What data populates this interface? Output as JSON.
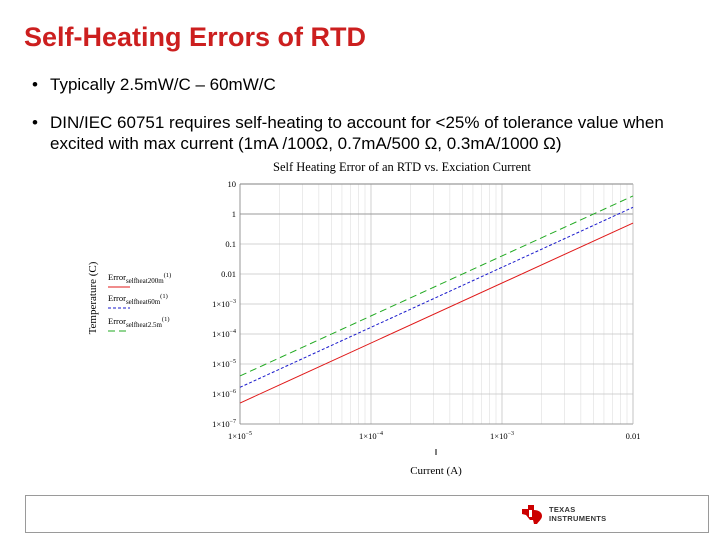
{
  "slide": {
    "title": "Self-Heating Errors of RTD",
    "bullets": [
      "Typically 2.5mW/C – 60mW/C",
      "DIN/IEC 60751 requires self-heating to account for <25% of tolerance value when excited with max current (1mA /100Ω, 0.7mA/500 Ω, 0.3mA/1000 Ω)"
    ],
    "bullet_symbol": "•"
  },
  "logo": {
    "line1": "TEXAS",
    "line2": "INSTRUMENTS",
    "color": "#cc0000"
  },
  "chart_data": {
    "type": "line",
    "title": "Self Heating Error of an RTD vs. Exciation Current",
    "xlabel": "Current (A)",
    "ylabel": "Temperature (C)",
    "x_scale": "log",
    "y_scale": "log",
    "xlim": [
      1e-05,
      0.01
    ],
    "ylim": [
      1e-07,
      10
    ],
    "grid": true,
    "x_ticks": [
      {
        "value": 1e-05,
        "base": "1×10",
        "exp": "−5"
      },
      {
        "value": 0.0001,
        "base": "1×10",
        "exp": "−4"
      },
      {
        "value": 0.001,
        "base": "1×10",
        "exp": "−3"
      },
      {
        "value": 0.01,
        "base": "0.01",
        "exp": ""
      }
    ],
    "y_ticks": [
      {
        "value": 10,
        "base": "10",
        "exp": ""
      },
      {
        "value": 1,
        "base": "1",
        "exp": ""
      },
      {
        "value": 0.1,
        "base": "0.1",
        "exp": ""
      },
      {
        "value": 0.01,
        "base": "0.01",
        "exp": ""
      },
      {
        "value": 0.001,
        "base": "1×10",
        "exp": "−3"
      },
      {
        "value": 0.0001,
        "base": "1×10",
        "exp": "−4"
      },
      {
        "value": 1e-05,
        "base": "1×10",
        "exp": "−5"
      },
      {
        "value": 1e-06,
        "base": "1×10",
        "exp": "−6"
      },
      {
        "value": 1e-07,
        "base": "1×10",
        "exp": "−7"
      }
    ],
    "series": [
      {
        "name": "Error",
        "sub": "selfheat200m",
        "sup": "(1)",
        "color": "#e01818",
        "dash": "",
        "x": [
          1e-05,
          0.01
        ],
        "y": [
          5e-07,
          0.5
        ]
      },
      {
        "name": "Error",
        "sub": "selfheat60m",
        "sup": "(1)",
        "color": "#1a1acc",
        "dash": "3,2",
        "x": [
          1e-05,
          0.01
        ],
        "y": [
          1.67e-06,
          1.67
        ]
      },
      {
        "name": "Error",
        "sub": "selfheat2.5m",
        "sup": "(1)",
        "color": "#22aa22",
        "dash": "7,4",
        "x": [
          1e-05,
          0.01
        ],
        "y": [
          4e-06,
          4
        ]
      }
    ]
  }
}
